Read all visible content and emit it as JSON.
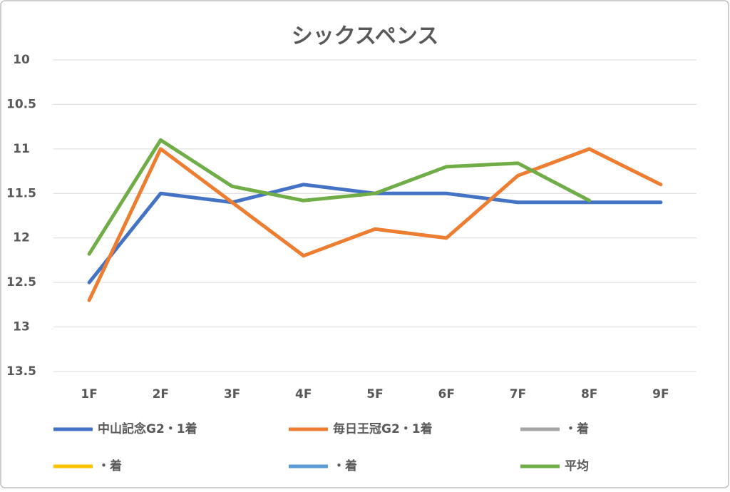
{
  "chart_data": {
    "type": "line",
    "title": "シックスペンス",
    "categories": [
      "1F",
      "2F",
      "3F",
      "4F",
      "5F",
      "6F",
      "7F",
      "8F",
      "9F"
    ],
    "series": [
      {
        "name": "中山記念G2・1着",
        "color": "#4472c4",
        "values": [
          12.5,
          11.5,
          11.6,
          11.4,
          11.5,
          11.5,
          11.6,
          11.6,
          11.6
        ]
      },
      {
        "name": "毎日王冠G2・1着",
        "color": "#ed7d31",
        "values": [
          12.7,
          11.0,
          11.6,
          12.2,
          11.9,
          12.0,
          11.3,
          11.0,
          11.4
        ]
      },
      {
        "name": "・着",
        "color": "#a5a5a5",
        "values": [
          null,
          null,
          null,
          null,
          null,
          null,
          null,
          null,
          null
        ]
      },
      {
        "name": "・着",
        "color": "#ffc000",
        "values": [
          null,
          null,
          null,
          null,
          null,
          null,
          null,
          null,
          null
        ]
      },
      {
        "name": "・着",
        "color": "#5b9bd5",
        "values": [
          null,
          null,
          null,
          null,
          null,
          null,
          null,
          null,
          null
        ]
      },
      {
        "name": "平均",
        "color": "#70ad47",
        "values": [
          12.18,
          10.9,
          11.42,
          11.58,
          11.5,
          11.2,
          11.16,
          11.58,
          null
        ]
      }
    ],
    "ylim": [
      10,
      13.5
    ],
    "yticks": [
      10,
      10.5,
      11,
      11.5,
      12,
      12.5,
      13,
      13.5
    ],
    "y_inverted": true,
    "grid": true,
    "legend": "bottom"
  }
}
